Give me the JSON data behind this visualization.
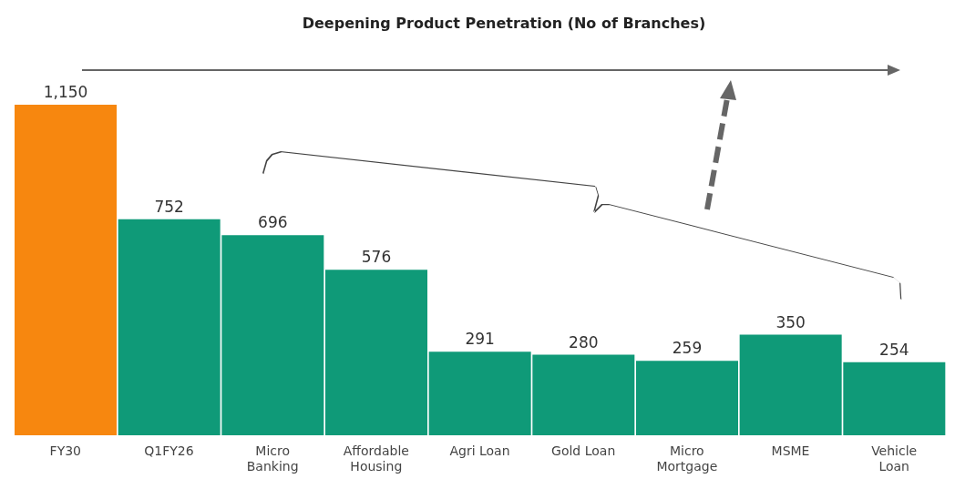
{
  "chart_data": {
    "type": "bar",
    "title": "Deepening Product Penetration (No of Branches)",
    "categories": [
      "FY30",
      "Q1FY26",
      "Micro Banking",
      "Affordable Housing",
      "Agri Loan",
      "Gold Loan",
      "Micro Mortgage",
      "MSME",
      "Vehicle Loan"
    ],
    "values": [
      1150,
      752,
      696,
      576,
      291,
      280,
      259,
      350,
      254
    ],
    "colors": [
      "#f7870f",
      "#0f9a78",
      "#0f9a78",
      "#0f9a78",
      "#0f9a78",
      "#0f9a78",
      "#0f9a78",
      "#0f9a78",
      "#0f9a78"
    ],
    "value_labels": [
      "1,150",
      "752",
      "696",
      "576",
      "291",
      "280",
      "259",
      "350",
      "254"
    ],
    "grid": false,
    "legend": false
  }
}
